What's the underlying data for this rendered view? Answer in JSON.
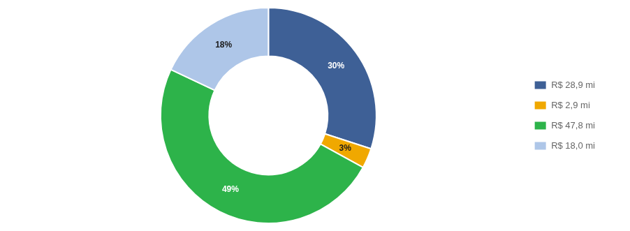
{
  "chart_data": {
    "type": "doughnut",
    "categories": [
      "R$ 28,9 mi",
      "R$ 2,9 mi",
      "R$ 47,8 mi",
      "R$ 18,0 mi"
    ],
    "values": [
      30,
      3,
      49,
      18
    ],
    "value_labels": [
      "30%",
      "3%",
      "49%",
      "18%"
    ],
    "colors": [
      "#3e6096",
      "#f0a800",
      "#2db34a",
      "#aec6e8"
    ],
    "data_labels": true,
    "legend": "right"
  }
}
